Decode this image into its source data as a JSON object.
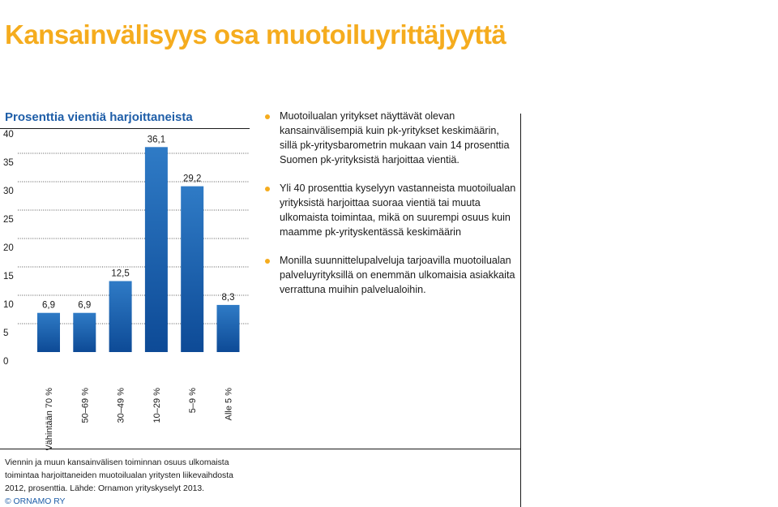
{
  "page": {
    "title": "Kansainvälisyys osa muotoiluyrittäjyyttä",
    "chart_heading": "Prosenttia vientiä harjoittaneista",
    "bullets": [
      "Muotoilualan yritykset näyttävät olevan kansainvälisempiä kuin pk-yritykset keskimäärin, sillä pk-yritysbarometrin mukaan vain 14 prosenttia Suomen pk-yrityksistä harjoittaa vientiä.",
      "Yli 40 prosenttia kyselyyn vastanneista muotoilualan yrityksistä harjoittaa suoraa vientiä tai muuta ulkomaista toimintaa, mikä on suurempi osuus kuin maamme pk-yrityskentässä keskimäärin",
      "Monilla suunnittelupalveluja tarjoavilla muotoilualan palveluyrityksillä on enemmän ulkomaisia asiakkaita verrattuna muihin palvelualoihin."
    ],
    "footnote": "Viennin ja muun kansainvälisen toiminnan osuus ulkomaista toimintaa harjoittaneiden muotoilualan yritysten liikevaihdosta 2012, prosenttia. Lähde: Ornamon yrityskyselyt 2013.",
    "copyright": "© ORNAMO RY"
  },
  "colors": {
    "title": "#f5ac1e",
    "heading": "#1f5ea8",
    "bar_top": "#2f7bc6",
    "bar_bottom": "#0d4a96",
    "bullet": "#f5ac1e",
    "text": "#1a1a1a"
  },
  "chart_data": {
    "type": "bar",
    "title": "Prosenttia vientiä harjoittaneista",
    "categories": [
      "Vähintään 70 %",
      "50–69 %",
      "30–49 %",
      "10–29 %",
      "5–9 %",
      "Alle 5 %"
    ],
    "values": [
      6.9,
      6.9,
      12.5,
      36.1,
      29.2,
      8.3
    ],
    "value_labels": [
      "6,9",
      "6,9",
      "12,5",
      "36,1",
      "29,2",
      "8,3"
    ],
    "y_ticks": [
      0,
      5,
      10,
      15,
      20,
      25,
      30,
      35,
      40
    ],
    "ylim": [
      0,
      40
    ],
    "grid": true,
    "grid_style": "dotted",
    "legend": "none"
  }
}
